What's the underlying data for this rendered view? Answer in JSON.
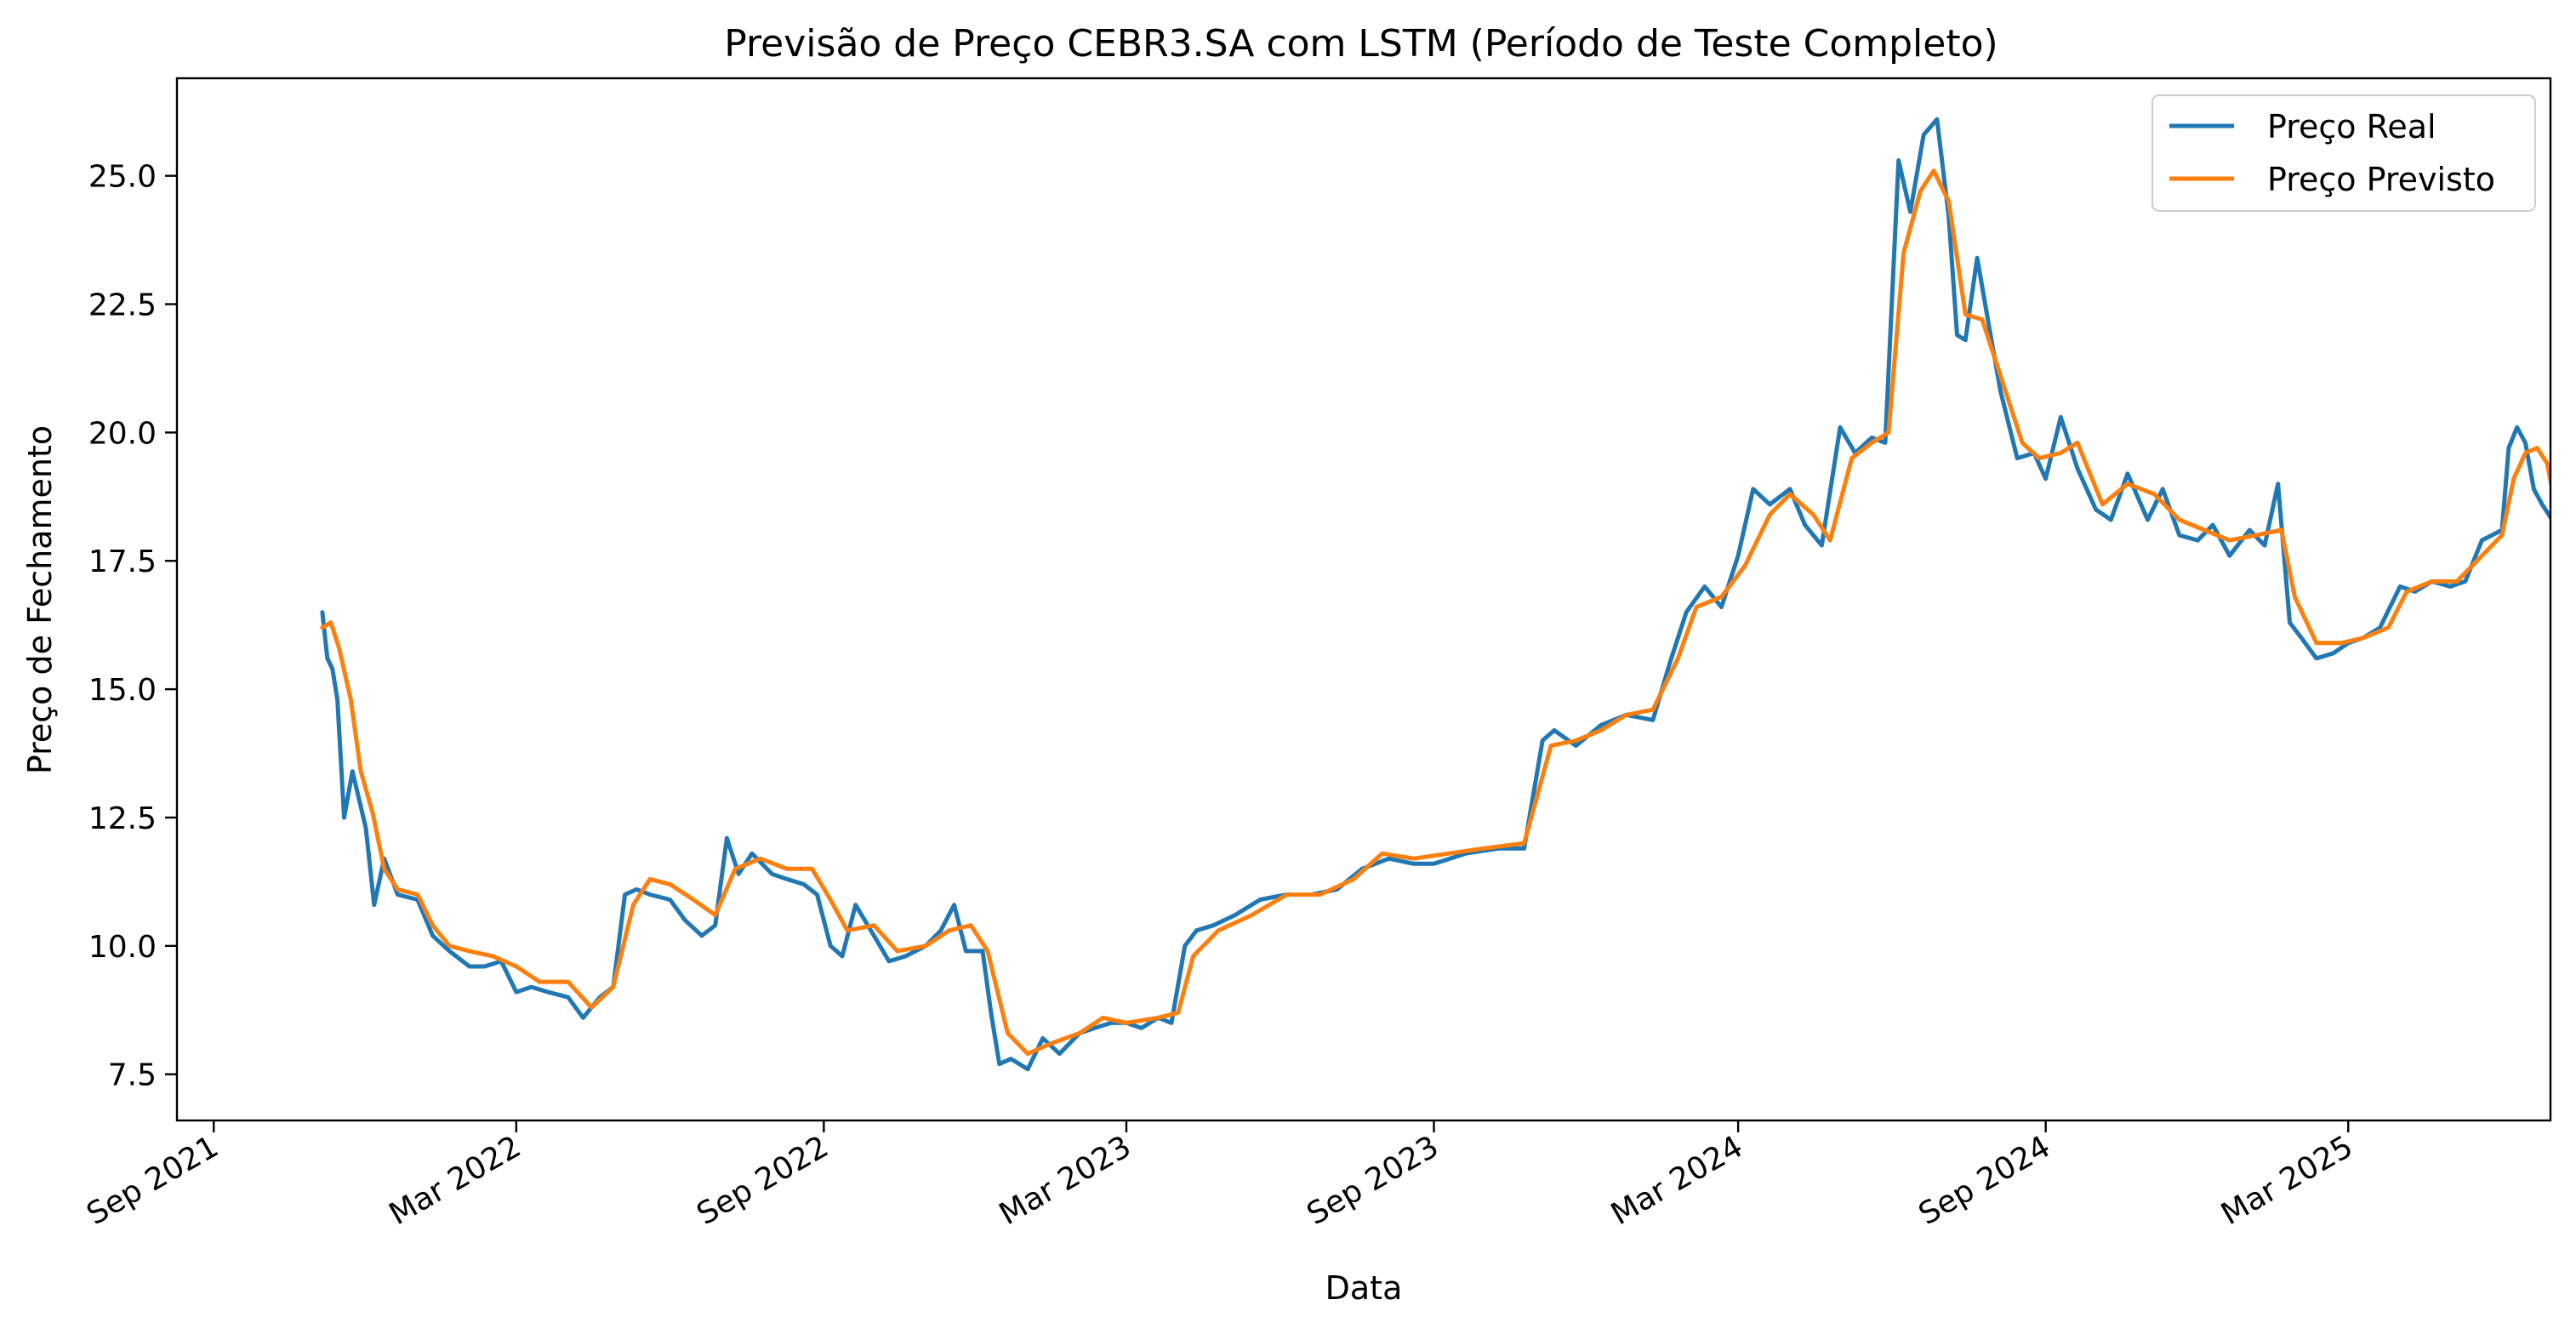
{
  "chart_data": {
    "type": "line",
    "title": "Previsão de Preço CEBR3.SA com LSTM (Período de Teste Completo)",
    "xlabel": "Data",
    "ylabel": "Preço de Fechamento",
    "xlim": [
      "2021-08-10",
      "2025-06-30"
    ],
    "ylim": [
      6.6,
      26.9
    ],
    "x_ticks": [
      {
        "date": "2021-09-01",
        "label": "Sep 2021"
      },
      {
        "date": "2022-03-01",
        "label": "Mar 2022"
      },
      {
        "date": "2022-09-01",
        "label": "Sep 2022"
      },
      {
        "date": "2023-03-01",
        "label": "Mar 2023"
      },
      {
        "date": "2023-09-01",
        "label": "Sep 2023"
      },
      {
        "date": "2024-03-01",
        "label": "Mar 2024"
      },
      {
        "date": "2024-09-01",
        "label": "Sep 2024"
      },
      {
        "date": "2025-03-01",
        "label": "Mar 2025"
      }
    ],
    "y_ticks": [
      {
        "value": 7.5,
        "label": "7.5"
      },
      {
        "value": 10.0,
        "label": "10.0"
      },
      {
        "value": 12.5,
        "label": "12.5"
      },
      {
        "value": 15.0,
        "label": "15.0"
      },
      {
        "value": 17.5,
        "label": "17.5"
      },
      {
        "value": 20.0,
        "label": "20.0"
      },
      {
        "value": 22.5,
        "label": "22.5"
      },
      {
        "value": 25.0,
        "label": "25.0"
      }
    ],
    "legend_position": "top-right",
    "grid": false,
    "series": [
      {
        "name": "Preço Real",
        "color": "#1f77b4",
        "points": [
          [
            "2021-11-05",
            16.5
          ],
          [
            "2021-11-08",
            15.6
          ],
          [
            "2021-11-11",
            15.4
          ],
          [
            "2021-11-14",
            14.8
          ],
          [
            "2021-11-18",
            12.5
          ],
          [
            "2021-11-23",
            13.4
          ],
          [
            "2021-12-01",
            12.3
          ],
          [
            "2021-12-06",
            10.8
          ],
          [
            "2021-12-12",
            11.7
          ],
          [
            "2021-12-20",
            11.0
          ],
          [
            "2022-01-01",
            10.9
          ],
          [
            "2022-01-10",
            10.2
          ],
          [
            "2022-01-20",
            9.9
          ],
          [
            "2022-02-01",
            9.6
          ],
          [
            "2022-02-10",
            9.6
          ],
          [
            "2022-02-20",
            9.7
          ],
          [
            "2022-03-01",
            9.1
          ],
          [
            "2022-03-10",
            9.2
          ],
          [
            "2022-03-20",
            9.1
          ],
          [
            "2022-04-01",
            9.0
          ],
          [
            "2022-04-10",
            8.6
          ],
          [
            "2022-04-20",
            9.0
          ],
          [
            "2022-04-28",
            9.2
          ],
          [
            "2022-05-05",
            11.0
          ],
          [
            "2022-05-12",
            11.1
          ],
          [
            "2022-05-20",
            11.0
          ],
          [
            "2022-06-01",
            10.9
          ],
          [
            "2022-06-10",
            10.5
          ],
          [
            "2022-06-20",
            10.2
          ],
          [
            "2022-06-28",
            10.4
          ],
          [
            "2022-07-05",
            12.1
          ],
          [
            "2022-07-12",
            11.4
          ],
          [
            "2022-07-20",
            11.8
          ],
          [
            "2022-08-01",
            11.4
          ],
          [
            "2022-08-10",
            11.3
          ],
          [
            "2022-08-20",
            11.2
          ],
          [
            "2022-08-28",
            11.0
          ],
          [
            "2022-09-05",
            10.0
          ],
          [
            "2022-09-12",
            9.8
          ],
          [
            "2022-09-20",
            10.8
          ],
          [
            "2022-10-01",
            10.2
          ],
          [
            "2022-10-10",
            9.7
          ],
          [
            "2022-10-20",
            9.8
          ],
          [
            "2022-11-01",
            10.0
          ],
          [
            "2022-11-10",
            10.3
          ],
          [
            "2022-11-18",
            10.8
          ],
          [
            "2022-11-25",
            9.9
          ],
          [
            "2022-12-05",
            9.9
          ],
          [
            "2022-12-10",
            8.7
          ],
          [
            "2022-12-15",
            7.7
          ],
          [
            "2022-12-22",
            7.8
          ],
          [
            "2023-01-01",
            7.6
          ],
          [
            "2023-01-10",
            8.2
          ],
          [
            "2023-01-20",
            7.9
          ],
          [
            "2023-02-01",
            8.3
          ],
          [
            "2023-02-10",
            8.4
          ],
          [
            "2023-02-20",
            8.5
          ],
          [
            "2023-03-01",
            8.5
          ],
          [
            "2023-03-10",
            8.4
          ],
          [
            "2023-03-20",
            8.6
          ],
          [
            "2023-03-28",
            8.5
          ],
          [
            "2023-04-05",
            10.0
          ],
          [
            "2023-04-12",
            10.3
          ],
          [
            "2023-04-22",
            10.4
          ],
          [
            "2023-05-05",
            10.6
          ],
          [
            "2023-05-20",
            10.9
          ],
          [
            "2023-06-05",
            11.0
          ],
          [
            "2023-06-20",
            11.0
          ],
          [
            "2023-07-05",
            11.1
          ],
          [
            "2023-07-20",
            11.5
          ],
          [
            "2023-08-05",
            11.7
          ],
          [
            "2023-08-20",
            11.6
          ],
          [
            "2023-09-01",
            11.6
          ],
          [
            "2023-09-20",
            11.8
          ],
          [
            "2023-10-10",
            11.9
          ],
          [
            "2023-10-25",
            11.9
          ],
          [
            "2023-11-05",
            14.0
          ],
          [
            "2023-11-12",
            14.2
          ],
          [
            "2023-11-25",
            13.9
          ],
          [
            "2023-12-10",
            14.3
          ],
          [
            "2023-12-25",
            14.5
          ],
          [
            "2024-01-10",
            14.4
          ],
          [
            "2024-01-20",
            15.5
          ],
          [
            "2024-01-30",
            16.5
          ],
          [
            "2024-02-10",
            17.0
          ],
          [
            "2024-02-20",
            16.6
          ],
          [
            "2024-03-01",
            17.6
          ],
          [
            "2024-03-10",
            18.9
          ],
          [
            "2024-03-20",
            18.6
          ],
          [
            "2024-04-01",
            18.9
          ],
          [
            "2024-04-10",
            18.2
          ],
          [
            "2024-04-20",
            17.8
          ],
          [
            "2024-05-01",
            20.1
          ],
          [
            "2024-05-10",
            19.6
          ],
          [
            "2024-05-20",
            19.9
          ],
          [
            "2024-05-28",
            19.8
          ],
          [
            "2024-06-05",
            25.3
          ],
          [
            "2024-06-12",
            24.3
          ],
          [
            "2024-06-20",
            25.8
          ],
          [
            "2024-06-28",
            26.1
          ],
          [
            "2024-07-05",
            24.2
          ],
          [
            "2024-07-10",
            21.9
          ],
          [
            "2024-07-15",
            21.8
          ],
          [
            "2024-07-22",
            23.4
          ],
          [
            "2024-07-30",
            21.9
          ],
          [
            "2024-08-05",
            20.8
          ],
          [
            "2024-08-15",
            19.5
          ],
          [
            "2024-08-25",
            19.6
          ],
          [
            "2024-09-01",
            19.1
          ],
          [
            "2024-09-10",
            20.3
          ],
          [
            "2024-09-20",
            19.3
          ],
          [
            "2024-10-01",
            18.5
          ],
          [
            "2024-10-10",
            18.3
          ],
          [
            "2024-10-20",
            19.2
          ],
          [
            "2024-11-01",
            18.3
          ],
          [
            "2024-11-10",
            18.9
          ],
          [
            "2024-11-20",
            18.0
          ],
          [
            "2024-12-01",
            17.9
          ],
          [
            "2024-12-10",
            18.2
          ],
          [
            "2024-12-20",
            17.6
          ],
          [
            "2025-01-01",
            18.1
          ],
          [
            "2025-01-10",
            17.8
          ],
          [
            "2025-01-18",
            19.0
          ],
          [
            "2025-01-25",
            16.3
          ],
          [
            "2025-02-01",
            16.0
          ],
          [
            "2025-02-10",
            15.6
          ],
          [
            "2025-02-20",
            15.7
          ],
          [
            "2025-03-01",
            15.9
          ],
          [
            "2025-03-10",
            16.0
          ],
          [
            "2025-03-20",
            16.2
          ],
          [
            "2025-04-01",
            17.0
          ],
          [
            "2025-04-10",
            16.9
          ],
          [
            "2025-04-20",
            17.1
          ],
          [
            "2025-05-01",
            17.0
          ],
          [
            "2025-05-10",
            17.1
          ],
          [
            "2025-05-20",
            17.9
          ],
          [
            "2025-06-01",
            18.1
          ],
          [
            "2025-06-05",
            19.7
          ],
          [
            "2025-06-10",
            20.1
          ],
          [
            "2025-06-15",
            19.8
          ],
          [
            "2025-06-20",
            18.9
          ],
          [
            "2025-06-25",
            18.6
          ],
          [
            "2025-07-01",
            18.3
          ]
        ]
      },
      {
        "name": "Preço Previsto",
        "color": "#ff7f0e",
        "points": [
          [
            "2021-11-05",
            16.2
          ],
          [
            "2021-11-10",
            16.3
          ],
          [
            "2021-11-15",
            15.8
          ],
          [
            "2021-11-22",
            14.8
          ],
          [
            "2021-11-28",
            13.4
          ],
          [
            "2021-12-05",
            12.6
          ],
          [
            "2021-12-12",
            11.5
          ],
          [
            "2021-12-20",
            11.1
          ],
          [
            "2022-01-01",
            11.0
          ],
          [
            "2022-01-10",
            10.4
          ],
          [
            "2022-01-20",
            10.0
          ],
          [
            "2022-02-01",
            9.9
          ],
          [
            "2022-02-15",
            9.8
          ],
          [
            "2022-03-01",
            9.6
          ],
          [
            "2022-03-15",
            9.3
          ],
          [
            "2022-04-01",
            9.3
          ],
          [
            "2022-04-15",
            8.8
          ],
          [
            "2022-04-28",
            9.2
          ],
          [
            "2022-05-10",
            10.8
          ],
          [
            "2022-05-20",
            11.3
          ],
          [
            "2022-06-01",
            11.2
          ],
          [
            "2022-06-15",
            10.9
          ],
          [
            "2022-06-28",
            10.6
          ],
          [
            "2022-07-10",
            11.5
          ],
          [
            "2022-07-25",
            11.7
          ],
          [
            "2022-08-10",
            11.5
          ],
          [
            "2022-08-25",
            11.5
          ],
          [
            "2022-09-05",
            10.9
          ],
          [
            "2022-09-15",
            10.3
          ],
          [
            "2022-10-01",
            10.4
          ],
          [
            "2022-10-15",
            9.9
          ],
          [
            "2022-11-01",
            10.0
          ],
          [
            "2022-11-15",
            10.3
          ],
          [
            "2022-11-28",
            10.4
          ],
          [
            "2022-12-08",
            9.9
          ],
          [
            "2022-12-20",
            8.3
          ],
          [
            "2023-01-01",
            7.9
          ],
          [
            "2023-01-15",
            8.1
          ],
          [
            "2023-02-01",
            8.3
          ],
          [
            "2023-02-15",
            8.6
          ],
          [
            "2023-03-01",
            8.5
          ],
          [
            "2023-03-20",
            8.6
          ],
          [
            "2023-04-01",
            8.7
          ],
          [
            "2023-04-10",
            9.8
          ],
          [
            "2023-04-25",
            10.3
          ],
          [
            "2023-05-15",
            10.6
          ],
          [
            "2023-06-05",
            11.0
          ],
          [
            "2023-06-25",
            11.0
          ],
          [
            "2023-07-15",
            11.3
          ],
          [
            "2023-08-01",
            11.8
          ],
          [
            "2023-08-20",
            11.7
          ],
          [
            "2023-09-10",
            11.8
          ],
          [
            "2023-10-01",
            11.9
          ],
          [
            "2023-10-25",
            12.0
          ],
          [
            "2023-11-10",
            13.9
          ],
          [
            "2023-11-25",
            14.0
          ],
          [
            "2023-12-10",
            14.2
          ],
          [
            "2023-12-25",
            14.5
          ],
          [
            "2024-01-10",
            14.6
          ],
          [
            "2024-01-25",
            15.6
          ],
          [
            "2024-02-05",
            16.6
          ],
          [
            "2024-02-20",
            16.8
          ],
          [
            "2024-03-05",
            17.4
          ],
          [
            "2024-03-20",
            18.4
          ],
          [
            "2024-04-01",
            18.8
          ],
          [
            "2024-04-15",
            18.4
          ],
          [
            "2024-04-25",
            17.9
          ],
          [
            "2024-05-08",
            19.5
          ],
          [
            "2024-05-20",
            19.8
          ],
          [
            "2024-05-30",
            20.0
          ],
          [
            "2024-06-08",
            23.5
          ],
          [
            "2024-06-18",
            24.7
          ],
          [
            "2024-06-26",
            25.1
          ],
          [
            "2024-07-05",
            24.5
          ],
          [
            "2024-07-15",
            22.3
          ],
          [
            "2024-07-25",
            22.2
          ],
          [
            "2024-08-05",
            21.1
          ],
          [
            "2024-08-18",
            19.8
          ],
          [
            "2024-08-28",
            19.5
          ],
          [
            "2024-09-10",
            19.6
          ],
          [
            "2024-09-20",
            19.8
          ],
          [
            "2024-10-05",
            18.6
          ],
          [
            "2024-10-20",
            19.0
          ],
          [
            "2024-11-05",
            18.8
          ],
          [
            "2024-11-20",
            18.3
          ],
          [
            "2024-12-05",
            18.1
          ],
          [
            "2024-12-20",
            17.9
          ],
          [
            "2025-01-05",
            18.0
          ],
          [
            "2025-01-20",
            18.1
          ],
          [
            "2025-01-28",
            16.8
          ],
          [
            "2025-02-10",
            15.9
          ],
          [
            "2025-02-25",
            15.9
          ],
          [
            "2025-03-10",
            16.0
          ],
          [
            "2025-03-25",
            16.2
          ],
          [
            "2025-04-05",
            16.9
          ],
          [
            "2025-04-20",
            17.1
          ],
          [
            "2025-05-05",
            17.1
          ],
          [
            "2025-05-20",
            17.6
          ],
          [
            "2025-06-01",
            18.0
          ],
          [
            "2025-06-08",
            19.1
          ],
          [
            "2025-06-15",
            19.6
          ],
          [
            "2025-06-22",
            19.7
          ],
          [
            "2025-06-28",
            19.4
          ],
          [
            "2025-07-01",
            18.9
          ]
        ]
      }
    ]
  }
}
